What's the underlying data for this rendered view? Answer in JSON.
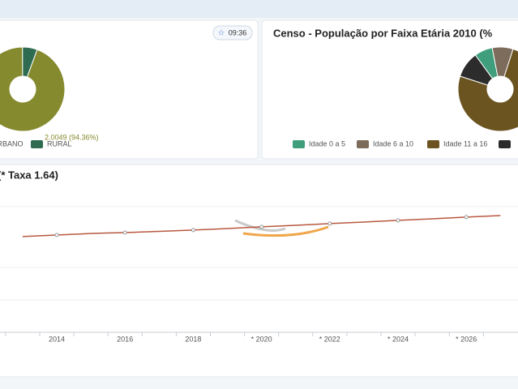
{
  "badge_time": "09:36",
  "chart_data": [
    {
      "type": "pie",
      "categories": [
        "URBANO",
        "RURAL"
      ],
      "values": [
        94.36,
        5.64
      ],
      "value_labels": [
        "2.0049 (94.36%)",
        null
      ],
      "colors": [
        "#858a2e",
        "#2f6b50"
      ]
    },
    {
      "type": "pie",
      "title": "Censo - População por Faixa Etária 2010 (%",
      "categories": [
        "Idade 0 a 5",
        "Idade 6 a 10",
        "Idade 11 a 16",
        null
      ],
      "values": [
        7,
        8,
        75,
        10
      ],
      "colors": [
        "#3f9e7c",
        "#7d6b5c",
        "#6b5420",
        "#2c2c2c"
      ]
    },
    {
      "type": "line",
      "title": "(* Taxa 1.64)",
      "categories": [
        null,
        "2014",
        null,
        "2016",
        null,
        "2018",
        null,
        "* 2020",
        null,
        "* 2022",
        null,
        "* 2024",
        null,
        "* 2026",
        null
      ],
      "values": [
        73.8,
        75,
        76.2,
        76.9,
        77.8,
        78.8,
        80,
        81.3,
        82.5,
        83.8,
        85,
        86.3,
        87.5,
        88.8,
        90
      ],
      "color": "#b9583f",
      "ylim": [
        0,
        100
      ]
    }
  ]
}
